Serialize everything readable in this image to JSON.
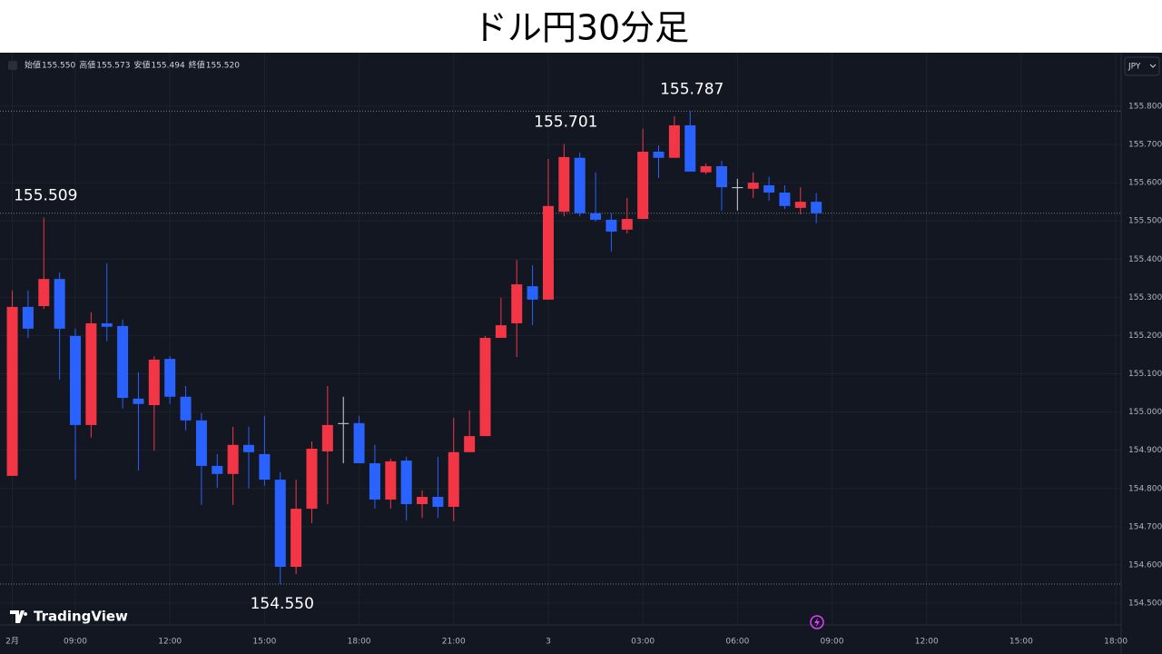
{
  "chart_data": {
    "type": "candlestick",
    "title": "ドル円30分足",
    "ohlc_header": [
      {
        "name": "始値",
        "text": "155.550"
      },
      {
        "name": "高値",
        "text": "155.573"
      },
      {
        "name": "安値",
        "text": "155.494"
      },
      {
        "name": "終値",
        "text": "155.520"
      }
    ],
    "currency": "JPY",
    "brand": "TradingView",
    "x": [
      7,
      7.5,
      8,
      8.5,
      9,
      9.5,
      10,
      10.5,
      11,
      11.5,
      12,
      12.5,
      13,
      13.5,
      14,
      14.5,
      15,
      15.5,
      16,
      16.5,
      17,
      17.5,
      18,
      18.5,
      19,
      19.5,
      20,
      20.5,
      21,
      21.5,
      22,
      22.5,
      23,
      23.5,
      24,
      24.5,
      25,
      25.5,
      26,
      26.5,
      27,
      27.5,
      28,
      28.5,
      29,
      29.5,
      30,
      30.5,
      31,
      31.5,
      32,
      32.5
    ],
    "open": [
      154.833,
      155.275,
      155.277,
      155.348,
      155.199,
      154.966,
      155.232,
      155.225,
      155.035,
      155.018,
      155.139,
      155.04,
      154.978,
      154.859,
      154.838,
      154.914,
      154.89,
      154.823,
      154.595,
      154.747,
      154.897,
      154.971,
      154.971,
      154.866,
      154.771,
      154.873,
      154.759,
      154.778,
      154.752,
      154.895,
      154.937,
      155.194,
      155.232,
      155.329,
      155.294,
      155.524,
      155.665,
      155.52,
      155.503,
      155.477,
      155.505,
      155.681,
      155.665,
      155.75,
      155.627,
      155.643,
      155.588,
      155.584,
      155.593,
      155.574,
      155.534,
      155.55
    ],
    "high": [
      155.318,
      155.318,
      155.509,
      155.365,
      155.218,
      155.261,
      155.389,
      155.242,
      155.104,
      155.146,
      155.146,
      155.068,
      154.997,
      154.89,
      154.961,
      154.961,
      154.99,
      154.842,
      154.823,
      154.923,
      155.068,
      155.04,
      154.99,
      154.914,
      154.878,
      154.883,
      154.795,
      154.883,
      154.985,
      155.004,
      155.199,
      155.299,
      155.398,
      155.384,
      155.662,
      155.701,
      155.679,
      155.627,
      155.52,
      155.56,
      155.741,
      155.698,
      155.774,
      155.787,
      155.65,
      155.657,
      155.61,
      155.627,
      155.615,
      155.593,
      155.588,
      155.573
    ],
    "low": [
      154.833,
      155.194,
      155.27,
      155.085,
      154.823,
      154.933,
      155.185,
      155.009,
      154.847,
      154.899,
      155.021,
      154.952,
      154.757,
      154.802,
      154.757,
      154.8,
      154.807,
      154.55,
      154.576,
      154.709,
      154.759,
      154.866,
      154.866,
      154.747,
      154.747,
      154.716,
      154.723,
      154.723,
      154.714,
      154.895,
      154.937,
      155.194,
      155.144,
      155.227,
      155.294,
      155.512,
      155.512,
      155.498,
      155.42,
      155.467,
      155.505,
      155.612,
      155.665,
      155.629,
      155.622,
      155.527,
      155.527,
      155.56,
      155.553,
      155.531,
      155.517,
      155.494
    ],
    "close": [
      155.275,
      155.218,
      155.348,
      155.218,
      154.966,
      155.232,
      155.223,
      155.037,
      155.021,
      155.137,
      155.04,
      154.978,
      154.859,
      154.838,
      154.914,
      154.895,
      154.823,
      154.595,
      154.747,
      154.904,
      154.966,
      154.971,
      154.866,
      154.771,
      154.871,
      154.759,
      154.778,
      154.752,
      154.895,
      154.937,
      155.194,
      155.227,
      155.334,
      155.294,
      155.539,
      155.667,
      155.52,
      155.503,
      155.472,
      155.505,
      155.681,
      155.665,
      155.75,
      155.629,
      155.643,
      155.588,
      155.588,
      155.6,
      155.574,
      155.539,
      155.55,
      155.52
    ],
    "up_color": "#f23645",
    "down_color": "#2962ff",
    "doji_color": "#d1d4dc",
    "xlim": [
      6.61,
      42.17
    ],
    "xticks": [
      {
        "value": 7,
        "label": "2月"
      },
      {
        "value": 9,
        "label": "09:00"
      },
      {
        "value": 12,
        "label": "12:00"
      },
      {
        "value": 15,
        "label": "15:00"
      },
      {
        "value": 18,
        "label": "18:00"
      },
      {
        "value": 21,
        "label": "21:00"
      },
      {
        "value": 24,
        "label": "3"
      },
      {
        "value": 27,
        "label": "03:00"
      },
      {
        "value": 30,
        "label": "06:00"
      },
      {
        "value": 33,
        "label": "09:00"
      },
      {
        "value": 36,
        "label": "12:00"
      },
      {
        "value": 39,
        "label": "15:00"
      },
      {
        "value": 42,
        "label": "18:00"
      }
    ],
    "ylim": [
      154.443,
      155.94
    ],
    "yticks": [
      {
        "value": 154.5,
        "label": "154.500"
      },
      {
        "value": 154.6,
        "label": "154.600"
      },
      {
        "value": 154.7,
        "label": "154.700"
      },
      {
        "value": 154.8,
        "label": "154.800"
      },
      {
        "value": 154.9,
        "label": "154.900"
      },
      {
        "value": 155.0,
        "label": "155.000"
      },
      {
        "value": 155.1,
        "label": "155.100"
      },
      {
        "value": 155.2,
        "label": "155.200"
      },
      {
        "value": 155.3,
        "label": "155.300"
      },
      {
        "value": 155.4,
        "label": "155.400"
      },
      {
        "value": 155.5,
        "label": "155.500"
      },
      {
        "value": 155.6,
        "label": "155.600"
      },
      {
        "value": 155.7,
        "label": "155.700"
      },
      {
        "value": 155.8,
        "label": "155.800"
      }
    ],
    "grid": true,
    "price_lines": [
      155.787,
      155.52,
      154.55
    ],
    "annotations": [
      {
        "text": "155.509",
        "x": 8,
        "y": 155.509,
        "side": "above"
      },
      {
        "text": "155.701",
        "x": 24.5,
        "y": 155.701,
        "side": "above"
      },
      {
        "text": "155.787",
        "x": 28.5,
        "y": 155.787,
        "side": "above"
      },
      {
        "text": "154.550",
        "x": 15.5,
        "y": 154.55,
        "side": "below"
      }
    ]
  }
}
